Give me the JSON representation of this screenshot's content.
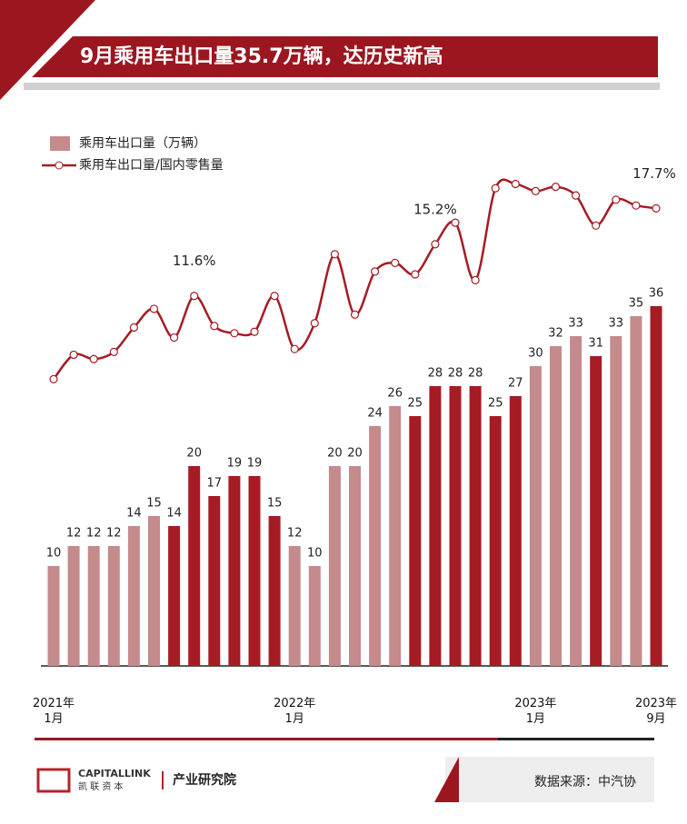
{
  "chart_data": {
    "type": "bar-line",
    "title": "9月乘用车出口量35.7万辆，达历史新高",
    "categories": [
      "2021年\n1月",
      null,
      null,
      null,
      null,
      null,
      null,
      null,
      null,
      null,
      null,
      null,
      "2022年\n1月",
      null,
      null,
      null,
      null,
      null,
      null,
      null,
      null,
      null,
      null,
      null,
      "2023年\n1月",
      null,
      null,
      null,
      null,
      null,
      "2023年\n9月"
    ],
    "series": [
      {
        "name": "乘用车出口量（万辆）",
        "type": "bar",
        "color": "#c48a8c",
        "colors": [
          "#c48a8c",
          "#c48a8c",
          "#c48a8c",
          "#c48a8c",
          "#c48a8c",
          "#c48a8c",
          "#a51c24",
          "#a51c24",
          "#a51c24",
          "#a51c24",
          "#a51c24",
          "#a51c24",
          "#c48a8c",
          "#c48a8c",
          "#c48a8c",
          "#c48a8c",
          "#c48a8c",
          "#c48a8c",
          "#a51c24",
          "#a51c24",
          "#a51c24",
          "#a51c24",
          "#a51c24",
          "#a51c24",
          "#c48a8c",
          "#c48a8c",
          "#c48a8c",
          "#a51c24",
          "#c48a8c",
          "#c48a8c",
          "#a51c24"
        ],
        "values": [
          10,
          12,
          12,
          12,
          14,
          15,
          14,
          20,
          17,
          19,
          19,
          15,
          12,
          10,
          20,
          20,
          24,
          26,
          25,
          28,
          28,
          28,
          25,
          27,
          30,
          32,
          33,
          31,
          33,
          35,
          36
        ]
      },
      {
        "name": "乘用车出口量/国内零售量",
        "type": "line",
        "axis": "y2",
        "color": "#a51c24",
        "values": [
          5.8,
          7.5,
          7.2,
          7.7,
          9.4,
          10.7,
          8.7,
          11.6,
          9.5,
          9.0,
          9.1,
          11.6,
          7.9,
          9.7,
          14.5,
          10.3,
          13.3,
          13.9,
          13.1,
          15.2,
          16.7,
          12.7,
          19.1,
          19.4,
          18.9,
          19.2,
          18.6,
          16.5,
          18.3,
          17.9,
          17.7
        ],
        "value_labels": [
          null,
          null,
          null,
          null,
          null,
          null,
          null,
          "11.6%",
          null,
          null,
          null,
          null,
          null,
          null,
          null,
          null,
          null,
          null,
          null,
          "15.2%",
          null,
          null,
          null,
          null,
          null,
          null,
          null,
          null,
          null,
          null,
          "17.7%"
        ]
      }
    ],
    "ylim": [
      0,
      40
    ],
    "y2lim": [
      5,
      20
    ]
  },
  "footer": {
    "brand": "CAPITALLINK",
    "brand_cn": "凯 联 资 本",
    "institute": "产业研究院",
    "source": "数据来源：中汽协"
  }
}
